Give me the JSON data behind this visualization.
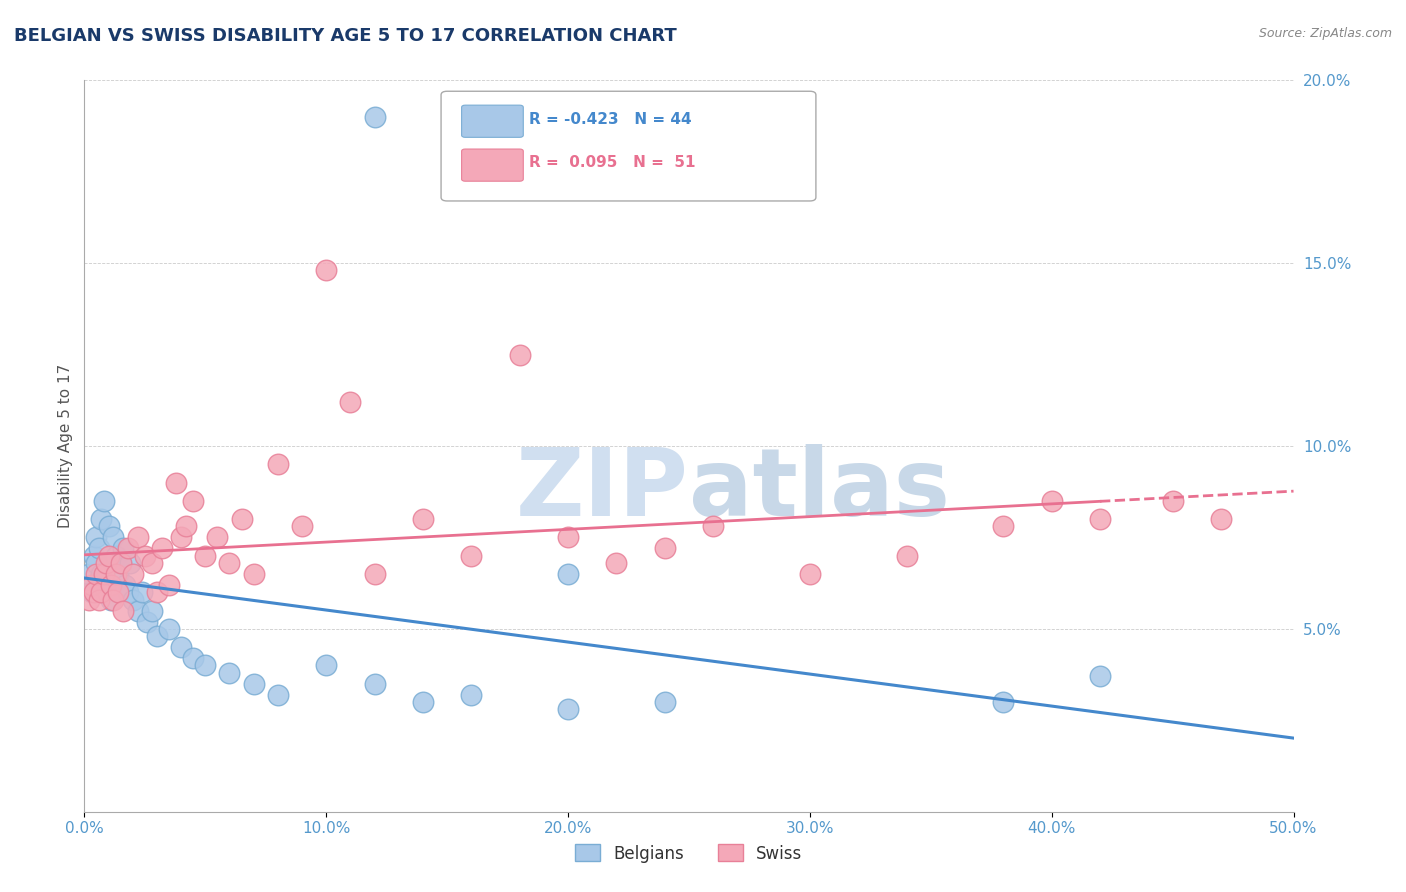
{
  "title": "BELGIAN VS SWISS DISABILITY AGE 5 TO 17 CORRELATION CHART",
  "source": "Source: ZipAtlas.com",
  "ylabel": "Disability Age 5 to 17",
  "xlim": [
    0,
    0.5
  ],
  "ylim": [
    0,
    0.2
  ],
  "xticks": [
    0.0,
    0.1,
    0.2,
    0.3,
    0.4,
    0.5
  ],
  "yticks": [
    0.0,
    0.05,
    0.1,
    0.15,
    0.2
  ],
  "xtick_labels": [
    "0.0%",
    "10.0%",
    "20.0%",
    "30.0%",
    "40.0%",
    "50.0%"
  ],
  "ytick_labels": [
    "",
    "5.0%",
    "10.0%",
    "15.0%",
    "20.0%"
  ],
  "belgian_R": -0.423,
  "belgian_N": 44,
  "swiss_R": 0.095,
  "swiss_N": 51,
  "belgian_color": "#a8c8e8",
  "swiss_color": "#f4a8b8",
  "belgian_edge_color": "#7aadd4",
  "swiss_edge_color": "#e88098",
  "belgian_line_color": "#4488cc",
  "swiss_line_color": "#e87090",
  "title_color": "#1a3a6a",
  "tick_color": "#5599cc",
  "watermark_color": "#d0dff0",
  "watermark_color2": "#c8d8e8",
  "legend_R_color_belgian": "#4488cc",
  "legend_R_color_swiss": "#e87090",
  "belgian_x": [
    0.002,
    0.003,
    0.004,
    0.005,
    0.005,
    0.006,
    0.006,
    0.007,
    0.007,
    0.008,
    0.009,
    0.01,
    0.011,
    0.012,
    0.013,
    0.014,
    0.015,
    0.016,
    0.017,
    0.018,
    0.019,
    0.02,
    0.022,
    0.024,
    0.026,
    0.028,
    0.03,
    0.035,
    0.04,
    0.045,
    0.05,
    0.06,
    0.07,
    0.08,
    0.1,
    0.12,
    0.14,
    0.16,
    0.2,
    0.24,
    0.12,
    0.2,
    0.38,
    0.42
  ],
  "belgian_y": [
    0.065,
    0.06,
    0.07,
    0.075,
    0.068,
    0.072,
    0.06,
    0.08,
    0.065,
    0.085,
    0.062,
    0.078,
    0.058,
    0.075,
    0.07,
    0.065,
    0.068,
    0.072,
    0.062,
    0.06,
    0.068,
    0.058,
    0.055,
    0.06,
    0.052,
    0.055,
    0.048,
    0.05,
    0.045,
    0.042,
    0.04,
    0.038,
    0.035,
    0.032,
    0.04,
    0.035,
    0.03,
    0.032,
    0.028,
    0.03,
    0.19,
    0.065,
    0.03,
    0.037
  ],
  "swiss_x": [
    0.002,
    0.003,
    0.004,
    0.005,
    0.006,
    0.007,
    0.008,
    0.009,
    0.01,
    0.011,
    0.012,
    0.013,
    0.014,
    0.015,
    0.016,
    0.018,
    0.02,
    0.022,
    0.025,
    0.028,
    0.03,
    0.032,
    0.035,
    0.038,
    0.04,
    0.042,
    0.045,
    0.05,
    0.055,
    0.06,
    0.065,
    0.07,
    0.08,
    0.09,
    0.1,
    0.11,
    0.12,
    0.14,
    0.16,
    0.18,
    0.2,
    0.22,
    0.24,
    0.26,
    0.3,
    0.34,
    0.38,
    0.4,
    0.42,
    0.45,
    0.47
  ],
  "swiss_y": [
    0.058,
    0.062,
    0.06,
    0.065,
    0.058,
    0.06,
    0.065,
    0.068,
    0.07,
    0.062,
    0.058,
    0.065,
    0.06,
    0.068,
    0.055,
    0.072,
    0.065,
    0.075,
    0.07,
    0.068,
    0.06,
    0.072,
    0.062,
    0.09,
    0.075,
    0.078,
    0.085,
    0.07,
    0.075,
    0.068,
    0.08,
    0.065,
    0.095,
    0.078,
    0.148,
    0.112,
    0.065,
    0.08,
    0.07,
    0.125,
    0.075,
    0.068,
    0.072,
    0.078,
    0.065,
    0.07,
    0.078,
    0.085,
    0.08,
    0.085,
    0.08
  ]
}
